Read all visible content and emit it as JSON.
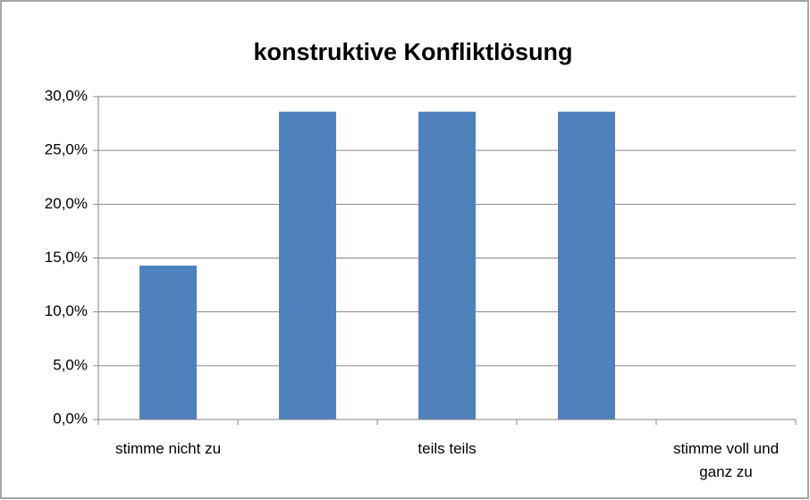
{
  "chart_data": {
    "type": "bar",
    "title": "konstruktive Konfliktlösung",
    "categories": [
      "stimme nicht zu",
      null,
      "teils teils",
      null,
      "stimme voll und ganz zu"
    ],
    "values": [
      14.3,
      28.6,
      28.6,
      28.6,
      0
    ],
    "color": "#4f81bd",
    "ylim": [
      0,
      30
    ],
    "yticks": [
      {
        "value": 0,
        "label": "0,0%"
      },
      {
        "value": 5,
        "label": "5,0%"
      },
      {
        "value": 10,
        "label": "10,0%"
      },
      {
        "value": 15,
        "label": "15,0%"
      },
      {
        "value": 20,
        "label": "20,0%"
      },
      {
        "value": 25,
        "label": "25,0%"
      },
      {
        "value": 30,
        "label": "30,0%"
      }
    ],
    "grid": true
  }
}
